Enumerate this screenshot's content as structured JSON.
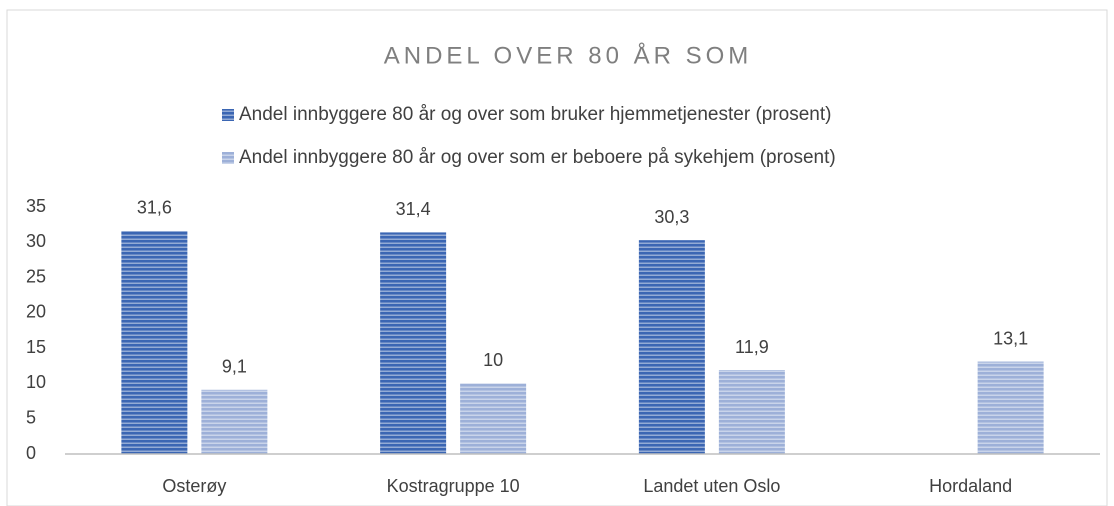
{
  "chart_data": {
    "type": "bar",
    "title": "ANDEL OVER 80 ÅR SOM",
    "categories": [
      "Osterøy",
      "Kostragruppe 10",
      "Landet uten Oslo",
      "Hordaland"
    ],
    "series": [
      {
        "name": "Andel innbyggere 80 år og over som bruker hjemmetjenester (prosent)",
        "color": "#3b66b3",
        "values": [
          31.6,
          31.4,
          30.3,
          null
        ],
        "value_labels": [
          "31,6",
          "31,4",
          "30,3",
          null
        ]
      },
      {
        "name": "Andel innbyggere 80 år og over som er beboere på sykehjem (prosent)",
        "color": "#9db0d8",
        "values": [
          9.1,
          10,
          11.9,
          13.1
        ],
        "value_labels": [
          "9,1",
          "10",
          "11,9",
          "13,1"
        ]
      }
    ],
    "ylim": [
      0,
      35
    ],
    "yticks": [
      0,
      5,
      10,
      15,
      20,
      25,
      30,
      35
    ],
    "grid": false,
    "legend": "top"
  }
}
